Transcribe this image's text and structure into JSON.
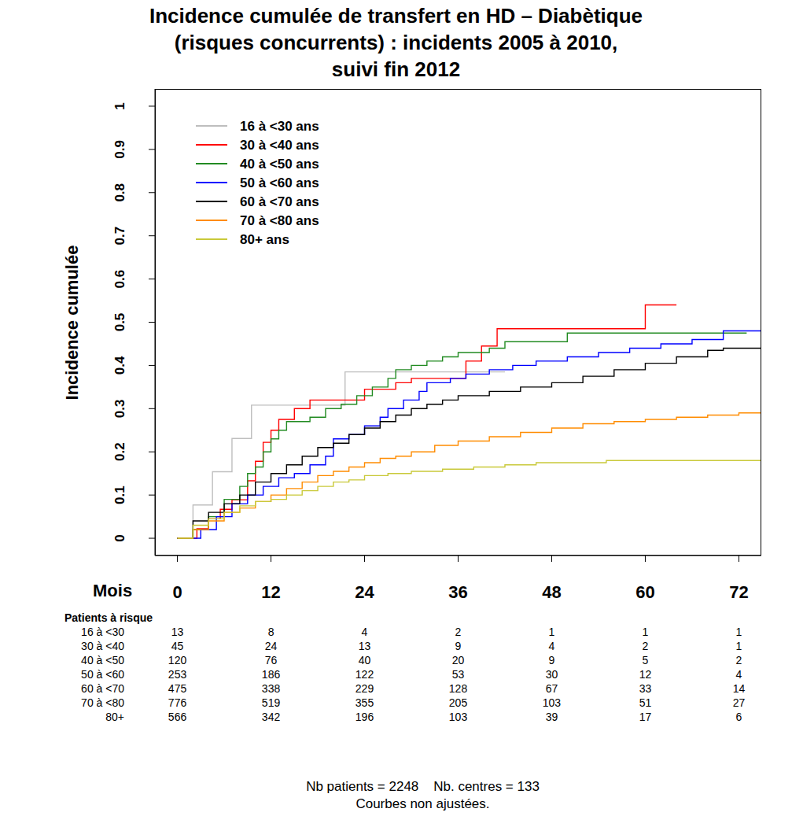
{
  "chart_data": {
    "type": "line",
    "title": "Incidence cumulée de transfert en HD – Diabètique\n(risques concurrents) : incidents 2005 à 2010,\nsuivi fin 2012",
    "x_label": "Mois",
    "y_label": "Incidence cumulée",
    "xlim": [
      -2.88,
      74.88
    ],
    "xticks": [
      0,
      12,
      24,
      36,
      48,
      60,
      72
    ],
    "ylim": [
      -0.04,
      1.04
    ],
    "yticks": [
      0,
      0.1,
      0.2,
      0.3,
      0.4,
      0.5,
      0.6,
      0.7,
      0.8,
      0.9,
      1
    ],
    "legend": "upper left",
    "line_style": "step",
    "series": [
      {
        "name": "16 à <30 ans",
        "color": "#bebebe",
        "x": [
          0,
          2,
          4.5,
          7,
          9.5,
          21.5,
          42
        ],
        "values": [
          0,
          0.077,
          0.154,
          0.231,
          0.308,
          0.385,
          0.385
        ]
      },
      {
        "name": "30 à <40 ans",
        "color": "#ff0000",
        "x": [
          0,
          2.5,
          4,
          5.5,
          7,
          9,
          10,
          11,
          12,
          13,
          15,
          17,
          24,
          28,
          30,
          37,
          39,
          41,
          60,
          64
        ],
        "values": [
          0,
          0.022,
          0.045,
          0.067,
          0.089,
          0.133,
          0.178,
          0.222,
          0.25,
          0.275,
          0.3,
          0.32,
          0.345,
          0.36,
          0.37,
          0.41,
          0.445,
          0.485,
          0.54,
          0.54
        ]
      },
      {
        "name": "40 à <50 ans",
        "color": "#228b22",
        "x": [
          0,
          2,
          4,
          6,
          8,
          9,
          10,
          11,
          12,
          13,
          14,
          17,
          19,
          21,
          23,
          25,
          27,
          28,
          30,
          32,
          34,
          36,
          40,
          42,
          47,
          50,
          73
        ],
        "values": [
          0,
          0.02,
          0.05,
          0.09,
          0.12,
          0.15,
          0.165,
          0.2,
          0.23,
          0.25,
          0.27,
          0.28,
          0.3,
          0.31,
          0.33,
          0.35,
          0.37,
          0.39,
          0.4,
          0.41,
          0.42,
          0.43,
          0.44,
          0.455,
          0.455,
          0.475,
          0.475
        ]
      },
      {
        "name": "50 à <60 ans",
        "color": "#0000ff",
        "x": [
          0,
          3,
          5,
          7,
          9,
          11,
          13,
          15,
          17,
          19,
          20,
          22,
          24,
          26,
          27,
          29,
          31,
          32,
          35,
          37,
          40,
          43,
          46,
          50,
          54,
          58,
          62,
          66,
          70,
          75
        ],
        "values": [
          0,
          0.02,
          0.05,
          0.08,
          0.1,
          0.12,
          0.14,
          0.15,
          0.17,
          0.19,
          0.23,
          0.24,
          0.26,
          0.28,
          0.3,
          0.32,
          0.34,
          0.36,
          0.37,
          0.38,
          0.39,
          0.4,
          0.41,
          0.42,
          0.43,
          0.44,
          0.45,
          0.46,
          0.48,
          0.48
        ]
      },
      {
        "name": "60 à <70 ans",
        "color": "#000000",
        "x": [
          0,
          2,
          4,
          6,
          8,
          10,
          12,
          14,
          16,
          18,
          20,
          22,
          24,
          26,
          28,
          30,
          32,
          34,
          36,
          40,
          44,
          48,
          52,
          56,
          60,
          64,
          68,
          70,
          75
        ],
        "values": [
          0,
          0.04,
          0.06,
          0.08,
          0.1,
          0.13,
          0.15,
          0.17,
          0.19,
          0.21,
          0.22,
          0.24,
          0.255,
          0.27,
          0.285,
          0.3,
          0.31,
          0.32,
          0.33,
          0.34,
          0.35,
          0.36,
          0.375,
          0.39,
          0.405,
          0.42,
          0.435,
          0.44,
          0.44
        ]
      },
      {
        "name": "70 à <80 ans",
        "color": "#ff8c00",
        "x": [
          0,
          2,
          4,
          6,
          8,
          10,
          12,
          14,
          16,
          18,
          20,
          22,
          24,
          26,
          28,
          30,
          33,
          36,
          40,
          44,
          48,
          52,
          56,
          60,
          64,
          68,
          72,
          75
        ],
        "values": [
          0,
          0.02,
          0.04,
          0.06,
          0.07,
          0.085,
          0.1,
          0.115,
          0.13,
          0.145,
          0.155,
          0.165,
          0.175,
          0.185,
          0.19,
          0.2,
          0.215,
          0.225,
          0.235,
          0.245,
          0.255,
          0.265,
          0.27,
          0.275,
          0.28,
          0.285,
          0.29,
          0.29
        ]
      },
      {
        "name": "80+ ans",
        "color": "#c9c93a",
        "x": [
          0,
          2,
          4,
          6,
          8,
          10,
          12,
          14,
          16,
          18,
          20,
          22,
          24,
          27,
          30,
          34,
          38,
          42,
          46,
          55,
          75
        ],
        "values": [
          0,
          0.03,
          0.045,
          0.06,
          0.075,
          0.085,
          0.09,
          0.1,
          0.11,
          0.12,
          0.13,
          0.135,
          0.145,
          0.15,
          0.155,
          0.16,
          0.165,
          0.17,
          0.175,
          0.18,
          0.18
        ]
      }
    ],
    "risk_table": {
      "title": "Patients à risque",
      "rows": [
        {
          "label": "16 à <30",
          "values": [
            13,
            8,
            4,
            2,
            1,
            1,
            1
          ]
        },
        {
          "label": "30 à <40",
          "values": [
            45,
            24,
            13,
            9,
            4,
            2,
            1
          ]
        },
        {
          "label": "40 à <50",
          "values": [
            120,
            76,
            40,
            20,
            9,
            5,
            2
          ]
        },
        {
          "label": "50 à <60",
          "values": [
            253,
            186,
            122,
            53,
            30,
            12,
            4
          ]
        },
        {
          "label": "60 à <70",
          "values": [
            475,
            338,
            229,
            128,
            67,
            33,
            14
          ]
        },
        {
          "label": "70 à <80",
          "values": [
            776,
            519,
            355,
            205,
            103,
            51,
            27
          ]
        },
        {
          "label": "80+",
          "values": [
            566,
            342,
            196,
            103,
            39,
            17,
            6
          ]
        }
      ]
    },
    "footer": [
      "Nb patients = 2248    Nb. centres = 133",
      "Courbes non ajustées."
    ]
  }
}
